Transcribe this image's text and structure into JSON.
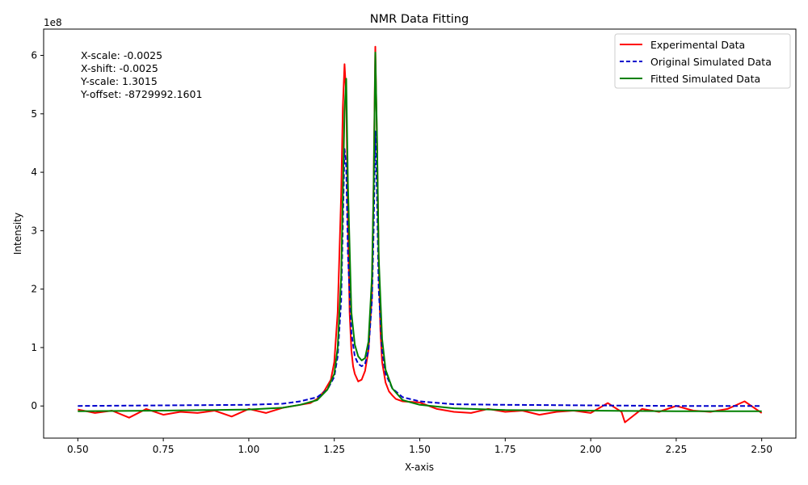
{
  "chart_data": {
    "type": "line",
    "title": "NMR Data Fitting",
    "xlabel": "X-axis",
    "ylabel": "Intensity",
    "y_multiplier_label": "1e8",
    "y_multiplier": 100000000,
    "xlim": [
      0.4,
      2.6
    ],
    "ylim": [
      -0.55,
      6.45
    ],
    "x_ticks": [
      0.5,
      0.75,
      1.0,
      1.25,
      1.5,
      1.75,
      2.0,
      2.25,
      2.5
    ],
    "x_tick_labels": [
      "0.50",
      "0.75",
      "1.00",
      "1.25",
      "1.50",
      "1.75",
      "2.00",
      "2.25",
      "2.50"
    ],
    "y_ticks": [
      0,
      1,
      2,
      3,
      4,
      5,
      6
    ],
    "y_tick_labels": [
      "0",
      "1",
      "2",
      "3",
      "4",
      "5",
      "6"
    ],
    "grid": false,
    "legend_position": "top-right",
    "annotation": [
      "X-scale: -0.0025",
      "X-shift: -0.0025",
      "Y-scale: 1.3015",
      "Y-offset: -8729992.1601"
    ],
    "series": [
      {
        "name": "Experimental Data",
        "color": "#ff0000",
        "style": "solid",
        "x": [
          0.5,
          0.55,
          0.6,
          0.65,
          0.7,
          0.75,
          0.8,
          0.85,
          0.9,
          0.95,
          1.0,
          1.05,
          1.1,
          1.15,
          1.18,
          1.2,
          1.22,
          1.24,
          1.25,
          1.26,
          1.27,
          1.275,
          1.28,
          1.285,
          1.29,
          1.295,
          1.3,
          1.305,
          1.31,
          1.32,
          1.33,
          1.34,
          1.35,
          1.36,
          1.365,
          1.37,
          1.375,
          1.38,
          1.385,
          1.39,
          1.4,
          1.41,
          1.42,
          1.43,
          1.45,
          1.5,
          1.55,
          1.6,
          1.65,
          1.7,
          1.75,
          1.8,
          1.85,
          1.9,
          1.95,
          2.0,
          2.05,
          2.09,
          2.1,
          2.15,
          2.2,
          2.25,
          2.3,
          2.35,
          2.4,
          2.45,
          2.5
        ],
        "y": [
          -0.06,
          -0.12,
          -0.08,
          -0.2,
          -0.05,
          -0.15,
          -0.1,
          -0.12,
          -0.08,
          -0.18,
          -0.05,
          -0.12,
          -0.03,
          0.02,
          0.05,
          0.12,
          0.25,
          0.45,
          0.75,
          1.6,
          3.6,
          5.1,
          5.85,
          5.3,
          3.2,
          1.6,
          0.95,
          0.68,
          0.55,
          0.42,
          0.45,
          0.6,
          0.95,
          1.9,
          3.8,
          6.15,
          4.5,
          2.5,
          1.3,
          0.75,
          0.4,
          0.25,
          0.18,
          0.12,
          0.08,
          0.06,
          -0.05,
          -0.1,
          -0.12,
          -0.05,
          -0.1,
          -0.08,
          -0.15,
          -0.1,
          -0.08,
          -0.12,
          0.05,
          -0.1,
          -0.28,
          -0.05,
          -0.1,
          0.0,
          -0.08,
          -0.1,
          -0.05,
          0.08,
          -0.12
        ]
      },
      {
        "name": "Original Simulated Data",
        "color": "#0000cc",
        "style": "dashed",
        "x": [
          0.5,
          0.75,
          1.0,
          1.1,
          1.15,
          1.2,
          1.23,
          1.25,
          1.26,
          1.27,
          1.28,
          1.285,
          1.29,
          1.3,
          1.31,
          1.32,
          1.33,
          1.34,
          1.35,
          1.36,
          1.365,
          1.37,
          1.375,
          1.38,
          1.39,
          1.4,
          1.42,
          1.45,
          1.5,
          1.6,
          1.75,
          2.0,
          2.25,
          2.5
        ],
        "y": [
          0.0,
          0.01,
          0.02,
          0.04,
          0.08,
          0.15,
          0.28,
          0.5,
          0.85,
          1.8,
          4.4,
          4.1,
          2.6,
          1.25,
          0.85,
          0.72,
          0.68,
          0.72,
          0.95,
          1.8,
          3.0,
          4.7,
          3.6,
          2.0,
          0.95,
          0.55,
          0.3,
          0.15,
          0.08,
          0.03,
          0.02,
          0.01,
          0.0,
          0.0
        ]
      },
      {
        "name": "Fitted Simulated Data",
        "color": "#008000",
        "style": "solid",
        "x": [
          0.5,
          0.75,
          1.0,
          1.1,
          1.15,
          1.2,
          1.23,
          1.25,
          1.26,
          1.27,
          1.28,
          1.285,
          1.29,
          1.3,
          1.31,
          1.32,
          1.33,
          1.34,
          1.35,
          1.36,
          1.365,
          1.37,
          1.375,
          1.38,
          1.39,
          1.4,
          1.42,
          1.45,
          1.5,
          1.6,
          1.75,
          2.0,
          2.25,
          2.5
        ],
        "y": [
          -0.09,
          -0.08,
          -0.06,
          -0.03,
          0.02,
          0.1,
          0.28,
          0.55,
          1.0,
          2.2,
          5.05,
          5.6,
          3.8,
          1.6,
          1.05,
          0.85,
          0.78,
          0.82,
          1.1,
          2.2,
          3.7,
          6.05,
          4.6,
          2.55,
          1.15,
          0.62,
          0.3,
          0.1,
          0.02,
          -0.04,
          -0.07,
          -0.08,
          -0.09,
          -0.09
        ]
      }
    ]
  }
}
